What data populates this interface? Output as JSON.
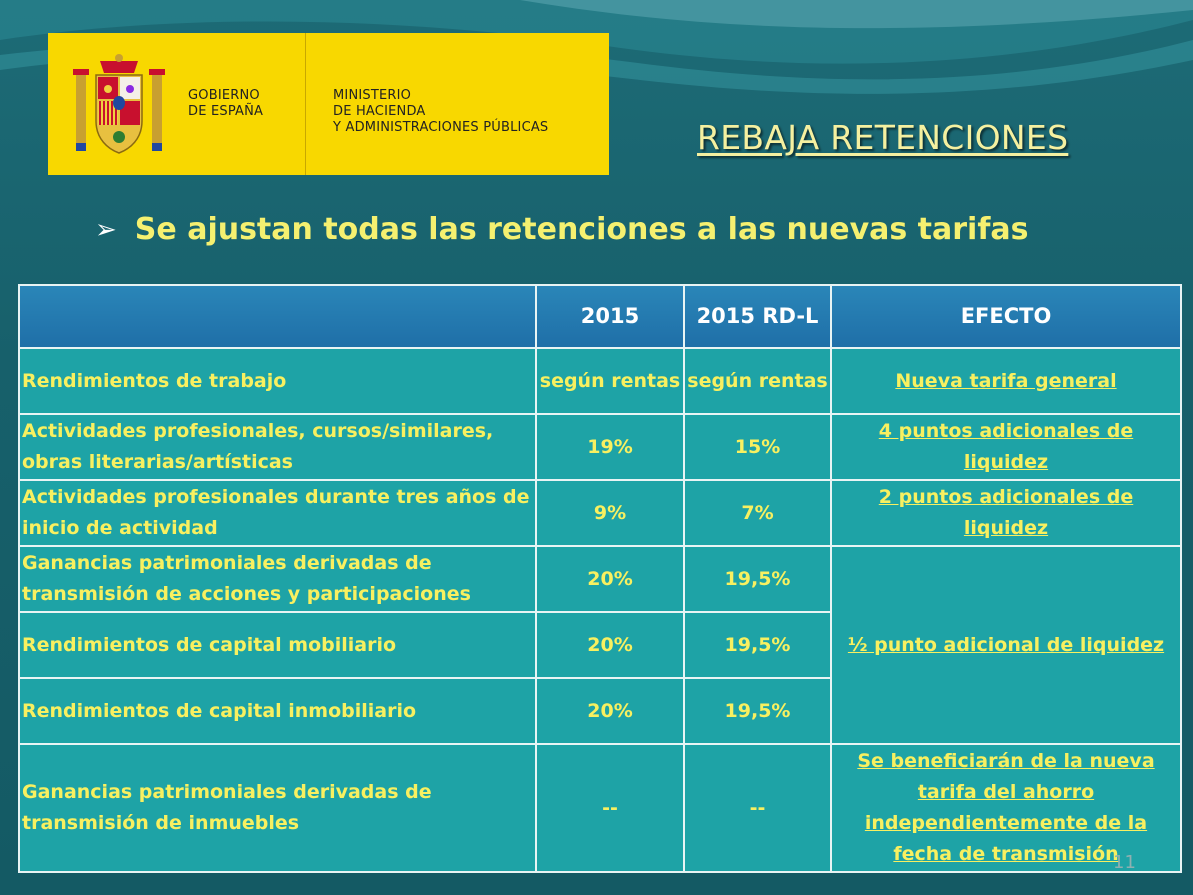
{
  "logo": {
    "gov_lines": [
      "GOBIERNO",
      "DE ESPAÑA"
    ],
    "ministry_lines": [
      "MINISTERIO",
      "DE HACIENDA",
      "Y ADMINISTRACIONES PÚBLICAS"
    ]
  },
  "title": "REBAJA RETENCIONES",
  "bullet": "Se ajustan todas las retenciones a las nuevas tarifas",
  "table": {
    "headers": [
      "",
      "2015",
      "2015 RD-L",
      "EFECTO"
    ],
    "rows": [
      {
        "label": "Rendimientos de trabajo",
        "y2015": "según rentas",
        "rdl": "según rentas",
        "effect": "Nueva tarifa general"
      },
      {
        "label": "Actividades profesionales, cursos/similares, obras literarias/artísticas",
        "y2015": "19%",
        "rdl": "15%",
        "effect": "4 puntos adicionales de liquidez"
      },
      {
        "label": "Actividades profesionales durante tres años de inicio de actividad",
        "y2015": "9%",
        "rdl": "7%",
        "effect": "2 puntos adicionales de liquidez"
      },
      {
        "label": "Ganancias patrimoniales derivadas de transmisión de acciones y participaciones",
        "y2015": "20%",
        "rdl": "19,5%",
        "effect": "½ punto adicional de liquidez"
      },
      {
        "label": "Rendimientos de capital mobiliario",
        "y2015": "20%",
        "rdl": "19,5%"
      },
      {
        "label": "Rendimientos de capital inmobiliario",
        "y2015": "20%",
        "rdl": "19,5%"
      },
      {
        "label": "Ganancias patrimoniales derivadas de transmisión de inmuebles",
        "y2015": "--",
        "rdl": "--",
        "effect": "Se beneficiarán de la nueva tarifa del ahorro independientemente de la fecha de transmisión"
      }
    ]
  },
  "page_number": "11"
}
